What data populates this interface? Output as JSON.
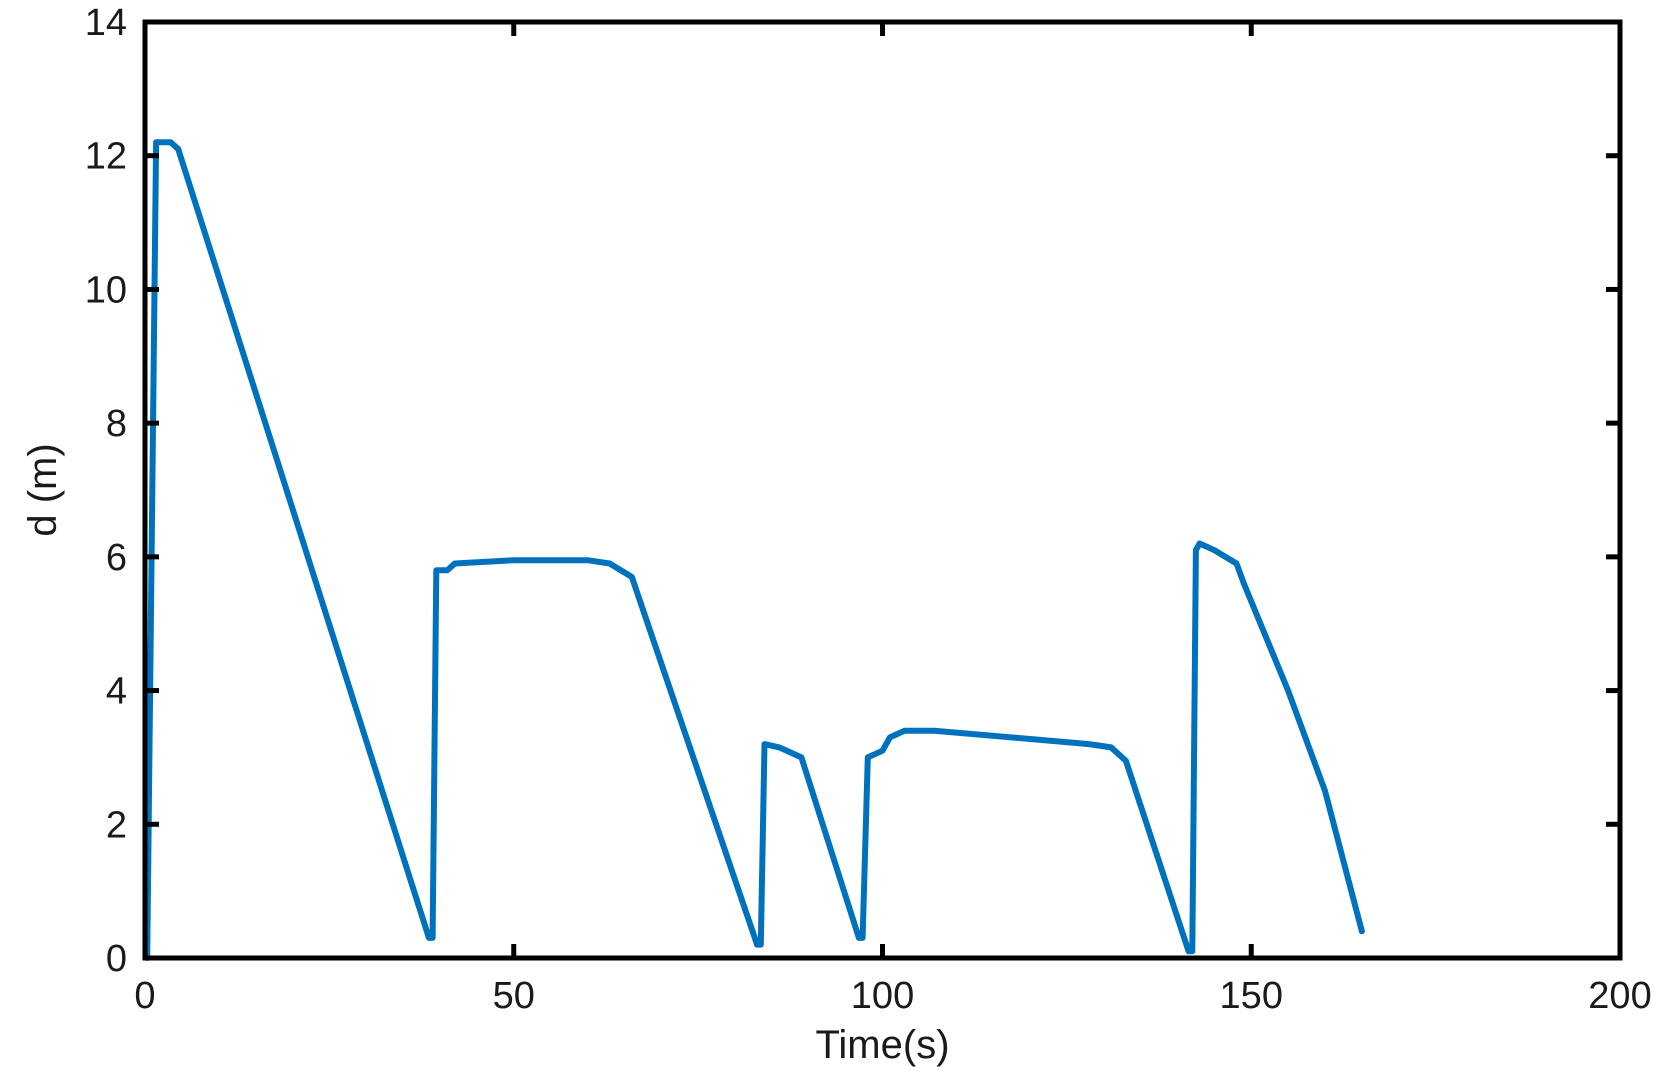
{
  "chart_data": {
    "type": "line",
    "title": "",
    "xlabel": "Time(s)",
    "ylabel": "d (m)",
    "xlim": [
      0,
      200
    ],
    "ylim": [
      0,
      14
    ],
    "xticks": [
      0,
      50,
      100,
      150,
      200
    ],
    "yticks": [
      0,
      2,
      4,
      6,
      8,
      10,
      12,
      14
    ],
    "xtick_labels": [
      "0",
      "50",
      "100",
      "150",
      "200"
    ],
    "ytick_labels": [
      "0",
      "2",
      "4",
      "6",
      "8",
      "10",
      "12",
      "14"
    ],
    "grid": false,
    "legend": "none",
    "series": [
      {
        "color": "#0072BD",
        "x": [
          0.3,
          1.5,
          2.8,
          3.5,
          4.5,
          38.5,
          39,
          39.5,
          41,
          42,
          50,
          60,
          63,
          66,
          83,
          83.5,
          84,
          86,
          89,
          96.8,
          97.3,
          98,
          100,
          101,
          103,
          107,
          128,
          131,
          133,
          141.5,
          142,
          142.5,
          143,
          145,
          148,
          149,
          155,
          160,
          165
        ],
        "y": [
          0,
          12.2,
          12.2,
          12.2,
          12.1,
          0.3,
          0.3,
          5.8,
          5.8,
          5.9,
          5.95,
          5.95,
          5.9,
          5.7,
          0.2,
          0.2,
          3.2,
          3.15,
          3.0,
          0.3,
          0.3,
          3.0,
          3.1,
          3.3,
          3.4,
          3.4,
          3.2,
          3.15,
          2.95,
          0.1,
          0.1,
          6.1,
          6.2,
          6.1,
          5.9,
          5.6,
          4.0,
          2.5,
          0.4
        ]
      }
    ]
  }
}
